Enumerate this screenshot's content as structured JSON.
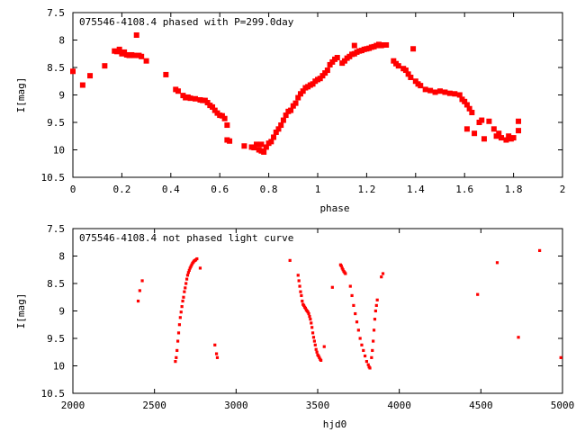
{
  "chart_data": [
    {
      "type": "scatter",
      "title": "075546-4108.4 phased with P=299.0day",
      "xlabel": "phase",
      "ylabel": "I[mag]",
      "xlim": [
        0,
        2
      ],
      "ylim": [
        10.5,
        7.5
      ],
      "y_inverted": true,
      "grid": false,
      "legend": "none",
      "marker": "filled-square",
      "color": "#ff0000",
      "x_ticks": [
        "0",
        "0.2",
        "0.4",
        "0.6",
        "0.8",
        "1",
        "1.2",
        "1.4",
        "1.6",
        "1.8",
        "2"
      ],
      "y_ticks": [
        "7.5",
        "8",
        "8.5",
        "9",
        "9.5",
        "10",
        "10.5"
      ],
      "points": [
        [
          0.0,
          8.57
        ],
        [
          0.04,
          8.82
        ],
        [
          0.07,
          8.65
        ],
        [
          0.13,
          8.47
        ],
        [
          0.17,
          8.2
        ],
        [
          0.18,
          8.21
        ],
        [
          0.19,
          8.17
        ],
        [
          0.2,
          8.25
        ],
        [
          0.21,
          8.22
        ],
        [
          0.22,
          8.27
        ],
        [
          0.23,
          8.28
        ],
        [
          0.24,
          8.27
        ],
        [
          0.25,
          8.28
        ],
        [
          0.26,
          7.91
        ],
        [
          0.27,
          8.28
        ],
        [
          0.28,
          8.3
        ],
        [
          0.3,
          8.38
        ],
        [
          0.38,
          8.63
        ],
        [
          0.42,
          8.9
        ],
        [
          0.43,
          8.93
        ],
        [
          0.45,
          9.01
        ],
        [
          0.46,
          9.05
        ],
        [
          0.47,
          9.04
        ],
        [
          0.48,
          9.06
        ],
        [
          0.5,
          9.07
        ],
        [
          0.52,
          9.09
        ],
        [
          0.53,
          9.1
        ],
        [
          0.54,
          9.1
        ],
        [
          0.55,
          9.14
        ],
        [
          0.56,
          9.19
        ],
        [
          0.57,
          9.22
        ],
        [
          0.58,
          9.28
        ],
        [
          0.59,
          9.33
        ],
        [
          0.6,
          9.37
        ],
        [
          0.61,
          9.38
        ],
        [
          0.62,
          9.43
        ],
        [
          0.63,
          9.55
        ],
        [
          0.63,
          9.82
        ],
        [
          0.64,
          9.84
        ],
        [
          0.7,
          9.93
        ],
        [
          0.73,
          9.95
        ],
        [
          0.74,
          9.96
        ],
        [
          0.75,
          9.9
        ],
        [
          0.76,
          10.0
        ],
        [
          0.77,
          10.02
        ],
        [
          0.77,
          9.9
        ],
        [
          0.78,
          10.04
        ],
        [
          0.79,
          9.95
        ],
        [
          0.8,
          9.88
        ],
        [
          0.81,
          9.85
        ],
        [
          0.82,
          9.77
        ],
        [
          0.83,
          9.68
        ],
        [
          0.84,
          9.62
        ],
        [
          0.85,
          9.55
        ],
        [
          0.86,
          9.46
        ],
        [
          0.87,
          9.37
        ],
        [
          0.88,
          9.3
        ],
        [
          0.89,
          9.28
        ],
        [
          0.9,
          9.2
        ],
        [
          0.91,
          9.15
        ],
        [
          0.92,
          9.05
        ],
        [
          0.93,
          8.98
        ],
        [
          0.94,
          8.93
        ],
        [
          0.95,
          8.87
        ],
        [
          0.96,
          8.85
        ],
        [
          0.97,
          8.82
        ],
        [
          0.98,
          8.8
        ],
        [
          0.99,
          8.75
        ],
        [
          1.0,
          8.72
        ],
        [
          1.01,
          8.7
        ],
        [
          1.02,
          8.65
        ],
        [
          1.03,
          8.6
        ],
        [
          1.04,
          8.55
        ],
        [
          1.05,
          8.45
        ],
        [
          1.06,
          8.4
        ],
        [
          1.07,
          8.35
        ],
        [
          1.08,
          8.32
        ],
        [
          1.1,
          8.42
        ],
        [
          1.11,
          8.38
        ],
        [
          1.12,
          8.33
        ],
        [
          1.13,
          8.3
        ],
        [
          1.14,
          8.26
        ],
        [
          1.15,
          8.25
        ],
        [
          1.15,
          8.1
        ],
        [
          1.16,
          8.22
        ],
        [
          1.17,
          8.2
        ],
        [
          1.18,
          8.19
        ],
        [
          1.19,
          8.17
        ],
        [
          1.2,
          8.16
        ],
        [
          1.21,
          8.15
        ],
        [
          1.22,
          8.13
        ],
        [
          1.23,
          8.12
        ],
        [
          1.24,
          8.1
        ],
        [
          1.25,
          8.08
        ],
        [
          1.26,
          8.1
        ],
        [
          1.27,
          8.09
        ],
        [
          1.28,
          8.09
        ],
        [
          1.31,
          8.38
        ],
        [
          1.32,
          8.43
        ],
        [
          1.33,
          8.47
        ],
        [
          1.35,
          8.52
        ],
        [
          1.36,
          8.55
        ],
        [
          1.37,
          8.62
        ],
        [
          1.38,
          8.68
        ],
        [
          1.39,
          8.16
        ],
        [
          1.4,
          8.75
        ],
        [
          1.41,
          8.8
        ],
        [
          1.42,
          8.83
        ],
        [
          1.44,
          8.9
        ],
        [
          1.46,
          8.92
        ],
        [
          1.48,
          8.95
        ],
        [
          1.5,
          8.93
        ],
        [
          1.52,
          8.95
        ],
        [
          1.54,
          8.97
        ],
        [
          1.56,
          8.98
        ],
        [
          1.58,
          9.0
        ],
        [
          1.59,
          9.08
        ],
        [
          1.6,
          9.12
        ],
        [
          1.61,
          9.18
        ],
        [
          1.62,
          9.25
        ],
        [
          1.63,
          9.32
        ],
        [
          1.61,
          9.62
        ],
        [
          1.64,
          9.7
        ],
        [
          1.66,
          9.5
        ],
        [
          1.67,
          9.46
        ],
        [
          1.68,
          9.8
        ],
        [
          1.7,
          9.48
        ],
        [
          1.72,
          9.62
        ],
        [
          1.73,
          9.75
        ],
        [
          1.74,
          9.7
        ],
        [
          1.75,
          9.78
        ],
        [
          1.77,
          9.82
        ],
        [
          1.78,
          9.75
        ],
        [
          1.79,
          9.8
        ],
        [
          1.8,
          9.78
        ],
        [
          1.82,
          9.65
        ],
        [
          1.82,
          9.48
        ]
      ]
    },
    {
      "type": "scatter",
      "title": "075546-4108.4 not phased light curve",
      "xlabel": "hjd0",
      "ylabel": "I[mag]",
      "xlim": [
        2000,
        5000
      ],
      "ylim": [
        10.5,
        7.5
      ],
      "y_inverted": true,
      "grid": false,
      "legend": "none",
      "marker": "small-dot",
      "color": "#ff0000",
      "x_ticks": [
        "2000",
        "2500",
        "3000",
        "3500",
        "4000",
        "4500",
        "5000"
      ],
      "y_ticks": [
        "7.5",
        "8",
        "8.5",
        "9",
        "9.5",
        "10",
        "10.5"
      ],
      "points": [
        [
          2400,
          8.82
        ],
        [
          2410,
          8.63
        ],
        [
          2425,
          8.45
        ],
        [
          2628,
          9.92
        ],
        [
          2633,
          9.85
        ],
        [
          2638,
          9.72
        ],
        [
          2643,
          9.55
        ],
        [
          2648,
          9.4
        ],
        [
          2653,
          9.25
        ],
        [
          2658,
          9.12
        ],
        [
          2663,
          9.02
        ],
        [
          2668,
          8.92
        ],
        [
          2673,
          8.82
        ],
        [
          2678,
          8.75
        ],
        [
          2683,
          8.65
        ],
        [
          2688,
          8.58
        ],
        [
          2693,
          8.5
        ],
        [
          2698,
          8.42
        ],
        [
          2703,
          8.35
        ],
        [
          2708,
          8.3
        ],
        [
          2713,
          8.26
        ],
        [
          2718,
          8.22
        ],
        [
          2723,
          8.19
        ],
        [
          2728,
          8.16
        ],
        [
          2733,
          8.13
        ],
        [
          2738,
          8.11
        ],
        [
          2743,
          8.09
        ],
        [
          2748,
          8.08
        ],
        [
          2753,
          8.07
        ],
        [
          2760,
          8.05
        ],
        [
          2780,
          8.22
        ],
        [
          2870,
          9.62
        ],
        [
          2880,
          9.78
        ],
        [
          2885,
          9.85
        ],
        [
          3330,
          8.08
        ],
        [
          3380,
          8.35
        ],
        [
          3385,
          8.45
        ],
        [
          3390,
          8.55
        ],
        [
          3395,
          8.65
        ],
        [
          3400,
          8.72
        ],
        [
          3405,
          8.82
        ],
        [
          3410,
          8.88
        ],
        [
          3415,
          8.9
        ],
        [
          3420,
          8.93
        ],
        [
          3425,
          8.95
        ],
        [
          3430,
          8.98
        ],
        [
          3435,
          9.0
        ],
        [
          3440,
          9.02
        ],
        [
          3445,
          9.05
        ],
        [
          3450,
          9.1
        ],
        [
          3455,
          9.15
        ],
        [
          3460,
          9.22
        ],
        [
          3465,
          9.3
        ],
        [
          3470,
          9.4
        ],
        [
          3475,
          9.48
        ],
        [
          3480,
          9.55
        ],
        [
          3485,
          9.62
        ],
        [
          3490,
          9.7
        ],
        [
          3495,
          9.75
        ],
        [
          3500,
          9.8
        ],
        [
          3505,
          9.82
        ],
        [
          3510,
          9.85
        ],
        [
          3515,
          9.88
        ],
        [
          3520,
          9.9
        ],
        [
          3540,
          9.65
        ],
        [
          3590,
          8.57
        ],
        [
          3640,
          8.16
        ],
        [
          3645,
          8.18
        ],
        [
          3650,
          8.22
        ],
        [
          3655,
          8.25
        ],
        [
          3660,
          8.28
        ],
        [
          3665,
          8.3
        ],
        [
          3670,
          8.32
        ],
        [
          3700,
          8.55
        ],
        [
          3710,
          8.72
        ],
        [
          3720,
          8.9
        ],
        [
          3730,
          9.05
        ],
        [
          3740,
          9.2
        ],
        [
          3750,
          9.35
        ],
        [
          3760,
          9.5
        ],
        [
          3770,
          9.62
        ],
        [
          3780,
          9.72
        ],
        [
          3790,
          9.82
        ],
        [
          3800,
          9.92
        ],
        [
          3810,
          9.98
        ],
        [
          3815,
          10.02
        ],
        [
          3820,
          10.04
        ],
        [
          3830,
          9.85
        ],
        [
          3835,
          9.72
        ],
        [
          3840,
          9.55
        ],
        [
          3845,
          9.35
        ],
        [
          3850,
          9.15
        ],
        [
          3855,
          9.0
        ],
        [
          3860,
          8.9
        ],
        [
          3865,
          8.8
        ],
        [
          3890,
          8.38
        ],
        [
          3900,
          8.32
        ],
        [
          4480,
          8.7
        ],
        [
          4600,
          8.12
        ],
        [
          4730,
          9.48
        ],
        [
          4860,
          7.9
        ],
        [
          4990,
          9.85
        ]
      ]
    }
  ]
}
